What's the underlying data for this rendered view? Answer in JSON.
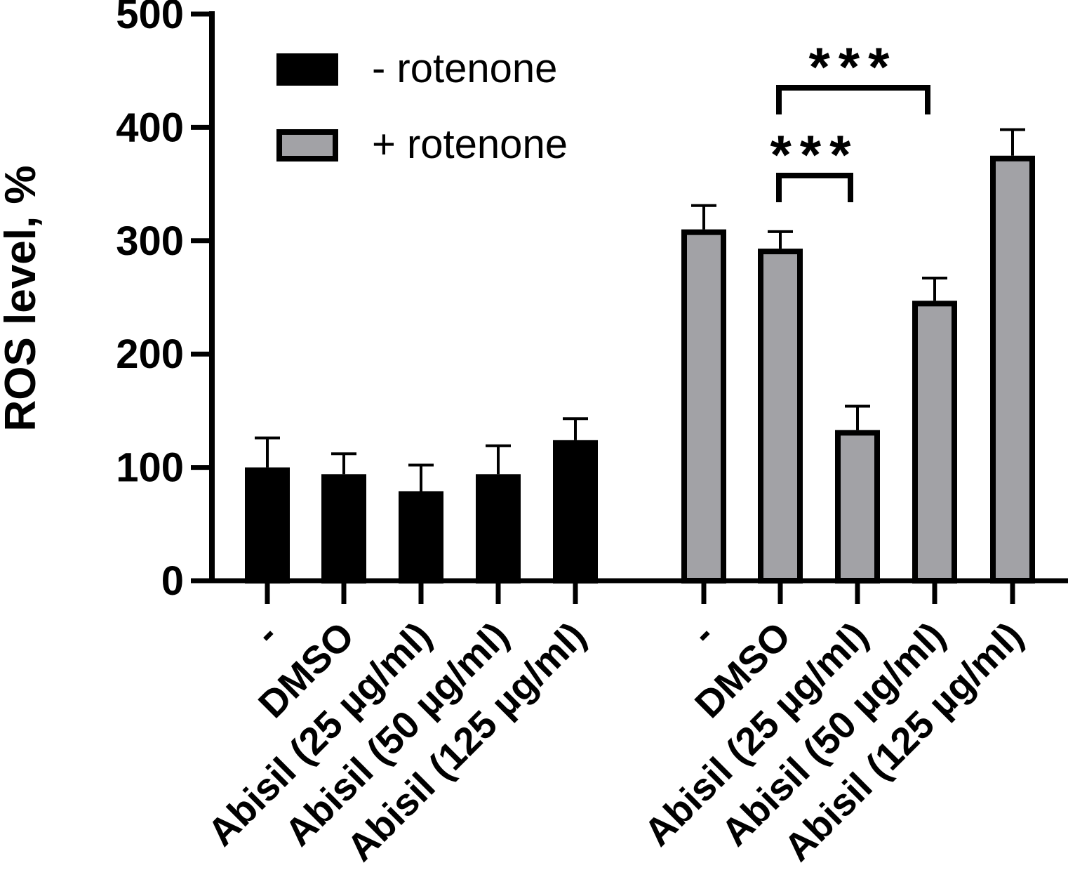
{
  "chart_data": {
    "type": "bar",
    "title": "",
    "xlabel": "",
    "ylabel": "ROS level, %",
    "ylim": [
      0,
      500
    ],
    "yticks": [
      0,
      100,
      200,
      300,
      400,
      500
    ],
    "grid": false,
    "legend_position": "top-left",
    "groups": [
      {
        "name": "- rotenone",
        "color": "#000000",
        "categories": [
          "-",
          "DMSO",
          "Abisil (25 µg/ml)",
          "Abisil (50 µg/ml)",
          "Abisil (125 µg/ml)"
        ],
        "values": [
          100,
          94,
          79,
          94,
          124
        ],
        "errors": [
          26,
          18,
          23,
          25,
          19
        ]
      },
      {
        "name": "+ rotenone",
        "color": "#a2a2a6",
        "categories": [
          "-",
          "DMSO",
          "Abisil (25 µg/ml)",
          "Abisil (50 µg/ml)",
          "Abisil (125 µg/ml)"
        ],
        "values": [
          310,
          293,
          133,
          247,
          375
        ],
        "errors": [
          21,
          15,
          21,
          20,
          23
        ]
      }
    ],
    "annotations": [
      {
        "text": "***",
        "group": 1,
        "from": 1,
        "to": 2
      },
      {
        "text": "***",
        "group": 1,
        "from": 1,
        "to": 3
      }
    ]
  }
}
